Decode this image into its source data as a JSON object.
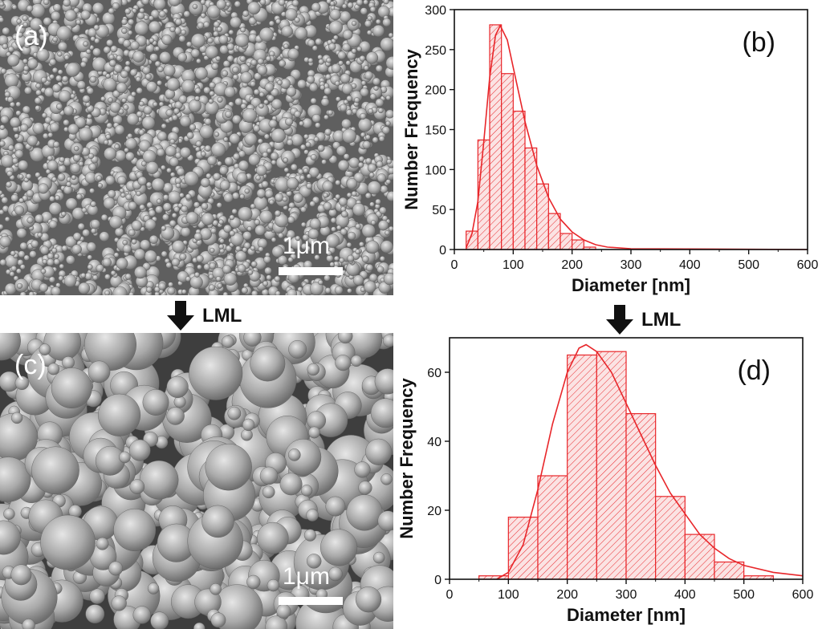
{
  "panels": {
    "a": {
      "label": "(a)",
      "scale_label": "1μm"
    },
    "b": {
      "label": "(b)"
    },
    "c": {
      "label": "(c)",
      "scale_label": "1μm"
    },
    "d": {
      "label": "(d)"
    }
  },
  "arrows": [
    {
      "label": "LML"
    },
    {
      "label": "LML"
    }
  ],
  "colors": {
    "accent": "#e8262a",
    "hatch": "#e8262a",
    "fill": "#fbe3e3"
  },
  "chart_data": [
    {
      "type": "bar",
      "panel": "(b)",
      "xlabel": "Diameter [nm]",
      "ylabel": "Number Frequency",
      "xlim": [
        0,
        600
      ],
      "ylim": [
        0,
        300
      ],
      "xticks": [
        0,
        100,
        200,
        300,
        400,
        500,
        600
      ],
      "yticks": [
        0,
        50,
        100,
        150,
        200,
        250,
        300
      ],
      "bin_width": 20,
      "bins": [
        {
          "x0": 20,
          "x1": 40,
          "value": 23
        },
        {
          "x0": 40,
          "x1": 60,
          "value": 137
        },
        {
          "x0": 60,
          "x1": 80,
          "value": 281
        },
        {
          "x0": 80,
          "x1": 100,
          "value": 220
        },
        {
          "x0": 100,
          "x1": 120,
          "value": 173
        },
        {
          "x0": 120,
          "x1": 140,
          "value": 127
        },
        {
          "x0": 140,
          "x1": 160,
          "value": 82
        },
        {
          "x0": 160,
          "x1": 180,
          "value": 45
        },
        {
          "x0": 180,
          "x1": 200,
          "value": 20
        },
        {
          "x0": 200,
          "x1": 220,
          "value": 12
        },
        {
          "x0": 220,
          "x1": 240,
          "value": 3
        }
      ],
      "fit_curve": {
        "type": "lognormal",
        "peak_x": 78,
        "peak_y": 280,
        "points": [
          [
            20,
            2
          ],
          [
            30,
            20
          ],
          [
            40,
            60
          ],
          [
            50,
            135
          ],
          [
            60,
            215
          ],
          [
            70,
            268
          ],
          [
            78,
            280
          ],
          [
            90,
            262
          ],
          [
            100,
            228
          ],
          [
            120,
            160
          ],
          [
            140,
            105
          ],
          [
            160,
            65
          ],
          [
            180,
            38
          ],
          [
            200,
            22
          ],
          [
            220,
            12
          ],
          [
            240,
            6
          ],
          [
            260,
            3
          ],
          [
            300,
            1
          ],
          [
            600,
            0
          ]
        ]
      },
      "grid": false
    },
    {
      "type": "bar",
      "panel": "(d)",
      "xlabel": "Diameter [nm]",
      "ylabel": "Number Frequency",
      "xlim": [
        0,
        600
      ],
      "ylim": [
        0,
        70
      ],
      "xticks": [
        0,
        100,
        200,
        300,
        400,
        500,
        600
      ],
      "yticks": [
        0,
        20,
        40,
        60
      ],
      "bin_width": 50,
      "bins": [
        {
          "x0": 50,
          "x1": 100,
          "value": 1
        },
        {
          "x0": 100,
          "x1": 150,
          "value": 18
        },
        {
          "x0": 150,
          "x1": 200,
          "value": 30
        },
        {
          "x0": 200,
          "x1": 250,
          "value": 65
        },
        {
          "x0": 250,
          "x1": 300,
          "value": 66
        },
        {
          "x0": 300,
          "x1": 350,
          "value": 48
        },
        {
          "x0": 350,
          "x1": 400,
          "value": 24
        },
        {
          "x0": 400,
          "x1": 450,
          "value": 13
        },
        {
          "x0": 450,
          "x1": 500,
          "value": 5
        },
        {
          "x0": 500,
          "x1": 550,
          "value": 1
        }
      ],
      "fit_curve": {
        "type": "lognormal",
        "peak_x": 232,
        "peak_y": 68,
        "points": [
          [
            80,
            0
          ],
          [
            100,
            2
          ],
          [
            125,
            10
          ],
          [
            150,
            26
          ],
          [
            175,
            45
          ],
          [
            200,
            60
          ],
          [
            220,
            67
          ],
          [
            232,
            68
          ],
          [
            250,
            66
          ],
          [
            275,
            60
          ],
          [
            300,
            51
          ],
          [
            325,
            42
          ],
          [
            350,
            33
          ],
          [
            375,
            25
          ],
          [
            400,
            19
          ],
          [
            425,
            13
          ],
          [
            450,
            9
          ],
          [
            475,
            6
          ],
          [
            500,
            4
          ],
          [
            550,
            2
          ],
          [
            600,
            1
          ]
        ]
      },
      "grid": false
    }
  ]
}
